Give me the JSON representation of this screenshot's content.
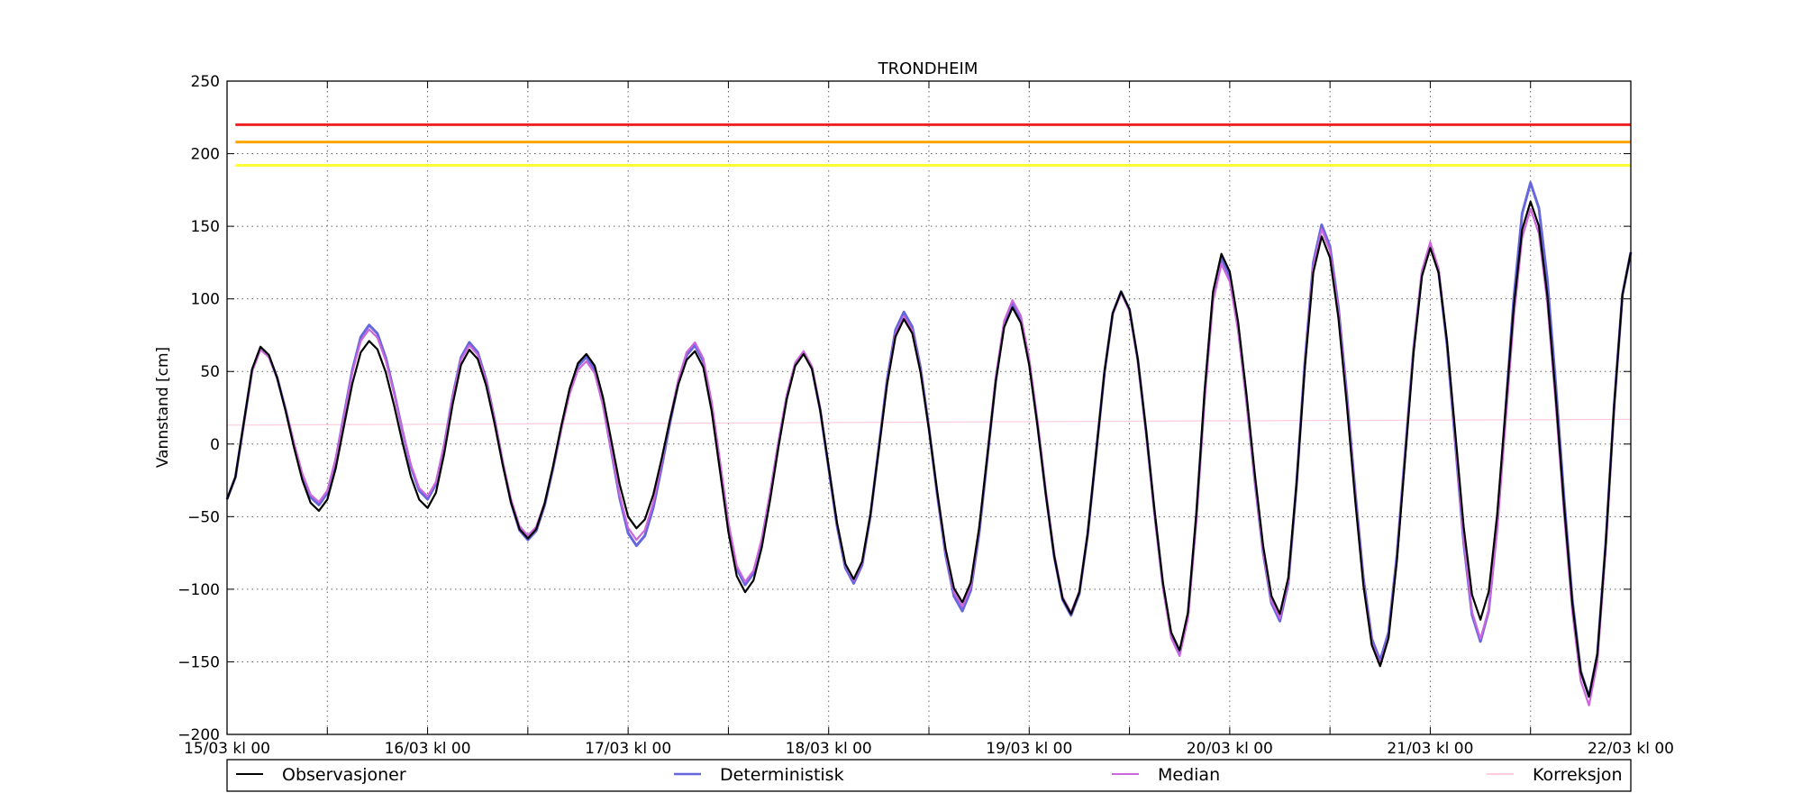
{
  "chart_data": {
    "type": "line",
    "title": "TRONDHEIM",
    "xlabel": "",
    "ylabel": "Vannstand [cm]",
    "ylim": [
      -200,
      250
    ],
    "xlim": [
      0,
      168
    ],
    "x_unit": "hours since 15/03 kl 00",
    "xticks": [
      {
        "x": 0,
        "label": "15/03 kl 00"
      },
      {
        "x": 24,
        "label": "16/03 kl 00"
      },
      {
        "x": 48,
        "label": "17/03 kl 00"
      },
      {
        "x": 72,
        "label": "18/03 kl 00"
      },
      {
        "x": 96,
        "label": "19/03 kl 00"
      },
      {
        "x": 120,
        "label": "20/03 kl 00"
      },
      {
        "x": 144,
        "label": "21/03 kl 00"
      },
      {
        "x": 168,
        "label": "22/03 kl 00"
      }
    ],
    "xminor": [
      12,
      36,
      60,
      84,
      108,
      132,
      156
    ],
    "yticks": [
      250,
      200,
      150,
      100,
      50,
      0,
      -50,
      -100,
      -150,
      -200
    ],
    "ytick_labels": [
      "250",
      "200",
      "150",
      "100",
      "50",
      "0",
      "−50",
      "−100",
      "−150",
      "−200"
    ],
    "grid": true,
    "legend_position": "bottom",
    "thresholds": [
      {
        "value": 220,
        "color": "#ee2222"
      },
      {
        "value": 208,
        "color": "#ffa500"
      },
      {
        "value": 192,
        "color": "#ffff33"
      }
    ],
    "extrema": {
      "observed": [
        [
          0,
          -38
        ],
        [
          4,
          67
        ],
        [
          11,
          -46
        ],
        [
          17,
          71
        ],
        [
          24,
          -44
        ],
        [
          29,
          65
        ],
        [
          36,
          -65
        ],
        [
          43,
          62
        ],
        [
          49,
          -58
        ],
        [
          56,
          64
        ],
        [
          62,
          -102
        ],
        [
          69,
          62
        ],
        [
          75,
          -93
        ],
        [
          81,
          86
        ],
        [
          88,
          -109
        ],
        [
          94,
          94
        ],
        [
          101,
          -117
        ],
        [
          107,
          105
        ],
        [
          114,
          -142
        ],
        [
          119,
          131
        ],
        [
          126,
          -117
        ],
        [
          131,
          143
        ],
        [
          138,
          -153
        ],
        [
          144,
          135
        ],
        [
          150,
          -121
        ],
        [
          156,
          167
        ],
        [
          163,
          -174
        ],
        [
          168,
          132
        ]
      ],
      "deterministic": [
        [
          0,
          -38
        ],
        [
          4,
          66
        ],
        [
          11,
          -42
        ],
        [
          17,
          82
        ],
        [
          24,
          -38
        ],
        [
          29,
          70
        ],
        [
          36,
          -66
        ],
        [
          43,
          60
        ],
        [
          49,
          -70
        ],
        [
          56,
          68
        ],
        [
          62,
          -97
        ],
        [
          69,
          63
        ],
        [
          75,
          -96
        ],
        [
          81,
          91
        ],
        [
          88,
          -115
        ],
        [
          94,
          97
        ],
        [
          101,
          -118
        ],
        [
          107,
          105
        ],
        [
          114,
          -144
        ],
        [
          119,
          128
        ],
        [
          126,
          -122
        ],
        [
          131,
          151
        ],
        [
          138,
          -149
        ],
        [
          144,
          137
        ],
        [
          150,
          -136
        ],
        [
          156,
          180
        ],
        [
          163,
          -174
        ],
        [
          168,
          132
        ]
      ],
      "median": [
        [
          0,
          -38
        ],
        [
          4,
          65
        ],
        [
          11,
          -40
        ],
        [
          17,
          79
        ],
        [
          24,
          -36
        ],
        [
          29,
          68
        ],
        [
          36,
          -63
        ],
        [
          43,
          57
        ],
        [
          49,
          -66
        ],
        [
          56,
          70
        ],
        [
          62,
          -95
        ],
        [
          69,
          64
        ],
        [
          75,
          -94
        ],
        [
          81,
          88
        ],
        [
          88,
          -112
        ],
        [
          94,
          99
        ],
        [
          101,
          -116
        ],
        [
          107,
          104
        ],
        [
          114,
          -146
        ],
        [
          119,
          124
        ],
        [
          126,
          -120
        ],
        [
          131,
          148
        ],
        [
          138,
          -152
        ],
        [
          144,
          139
        ],
        [
          150,
          -134
        ],
        [
          156,
          162
        ],
        [
          163,
          -180
        ],
        [
          168,
          132
        ]
      ]
    },
    "series": [
      {
        "name": "Observasjoner",
        "color": "#000000",
        "width": 2.2,
        "key": "observed"
      },
      {
        "name": "Deterministisk",
        "color": "#6666dd",
        "width": 3,
        "key": "deterministic"
      },
      {
        "name": "Median",
        "color": "#cc66dd",
        "width": 2.2,
        "key": "median"
      },
      {
        "name": "Korreksjon",
        "color": "#ffccdd",
        "width": 1.2,
        "key": "correction",
        "points": [
          [
            0,
            13
          ],
          [
            120,
            16
          ],
          [
            168,
            17
          ]
        ]
      }
    ]
  }
}
